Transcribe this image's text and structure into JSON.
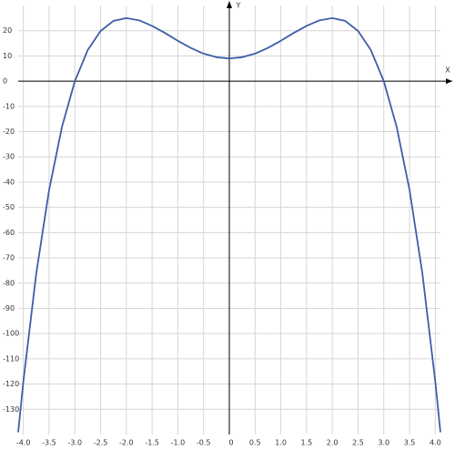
{
  "chart_data": {
    "type": "line",
    "x_label": "X",
    "y_label": "Y",
    "x": [
      -4.1,
      -4,
      -3.75,
      -3.5,
      -3.25,
      -3,
      -2.75,
      -2.5,
      -2.25,
      -2,
      -1.75,
      -1.5,
      -1.25,
      -1,
      -0.75,
      -0.5,
      -0.25,
      0,
      0.25,
      0.5,
      0.75,
      1,
      1.25,
      1.5,
      1.75,
      2,
      2.25,
      2.5,
      2.75,
      3,
      3.25,
      3.5,
      3.75,
      4,
      4.1
    ],
    "series": [
      {
        "color": "#3f5ea8",
        "values": [
          -139.1,
          -119,
          -76.3,
          -43.1,
          -18.1,
          0,
          12.3,
          19.9,
          23.9,
          25,
          24.1,
          21.9,
          19.1,
          16,
          13.2,
          10.9,
          9.5,
          9,
          9.5,
          10.9,
          13.2,
          16,
          19.1,
          21.9,
          24.1,
          25,
          23.9,
          19.9,
          12.3,
          0,
          -18.1,
          -43.1,
          -76.3,
          -119,
          -139.1
        ]
      }
    ],
    "xlim": [
      -4.1,
      4.1
    ],
    "ylim": [
      -140,
      30
    ],
    "xticks": [
      {
        "value": -4,
        "label": "-4.0"
      },
      -3.5,
      {
        "value": -3,
        "label": "-3.0"
      },
      -2.5,
      {
        "value": -2,
        "label": "-2.0"
      },
      -1.5,
      {
        "value": -1,
        "label": "-1.0"
      },
      -0.5,
      0,
      0.5,
      {
        "value": 1,
        "label": "1.0"
      },
      1.5,
      {
        "value": 2,
        "label": "2.0"
      },
      2.5,
      {
        "value": 3,
        "label": "3.0"
      },
      3.5,
      {
        "value": 4,
        "label": "4.0"
      }
    ],
    "yticks": [
      -130,
      -120,
      -110,
      -100,
      -90,
      -80,
      -70,
      -60,
      -50,
      -40,
      -30,
      -20,
      -10,
      0,
      10,
      20
    ],
    "grid": true
  }
}
